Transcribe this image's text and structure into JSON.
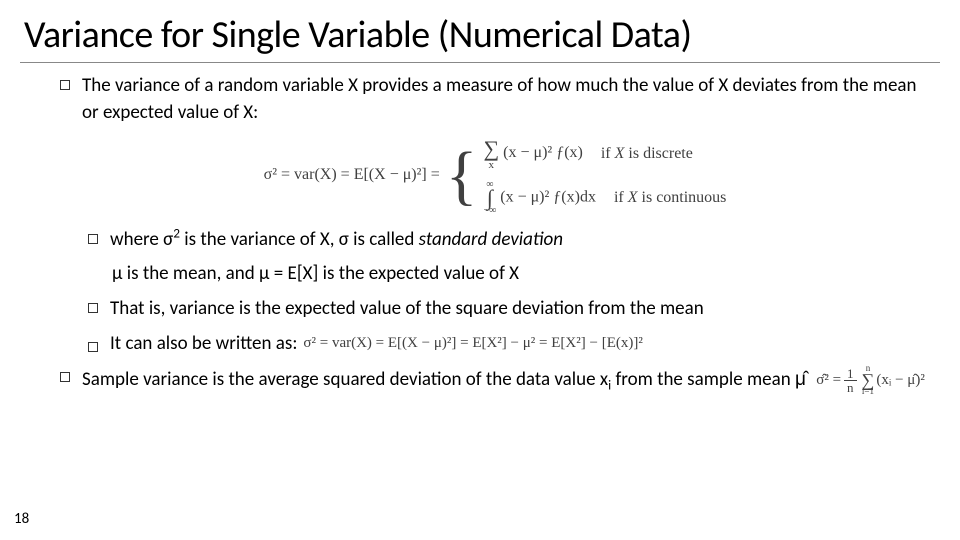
{
  "page_number": "18",
  "title": "Variance for Single Variable (Numerical Data)",
  "colors": {
    "text": "#000000",
    "formula_text": "#404040",
    "underline": "#888888",
    "background": "#ffffff"
  },
  "bullets": {
    "b1": "The variance of a random variable X provides a measure of how much the value of X deviates from the mean or expected value of X:",
    "b2": "where σ",
    "b2_b": " is the variance of X, σ is called ",
    "b2_c": "standard deviation",
    "b2_sub": "μ is the mean, and μ = E[X] is the expected value of X",
    "b3": "That is, variance is the expected value of the square deviation from the mean",
    "b4": "It can also be written as:",
    "b5_a": "Sample variance is the average squared deviation of the data value x",
    "b5_b": " from the sample mean",
    "b5_c": "μ̂"
  },
  "formula_main": {
    "lhs": "σ² = var(X) = E[(X − μ)²] =",
    "discrete_sum": "∑",
    "discrete_body": "(x − μ)² ƒ(x)",
    "discrete_label": "if X is discrete",
    "cont_upper": "∞",
    "cont_integral": "∫",
    "cont_lower": "−∞",
    "cont_body": "(x − μ)² ƒ(x)dx",
    "cont_label": "if X is continuous"
  },
  "formula_inline": {
    "expanded": "σ² = var(X) = E[(X − μ)²] = E[X²] − μ² = E[X²] − [E(x)]²"
  },
  "formula_sample": {
    "lhs": "σ̂² =",
    "frac_num": "1",
    "frac_den": "n",
    "sum_upper": "n",
    "sum_sym": "∑",
    "sum_lower": "i=1",
    "body": "(xᵢ − μ̂)²"
  }
}
